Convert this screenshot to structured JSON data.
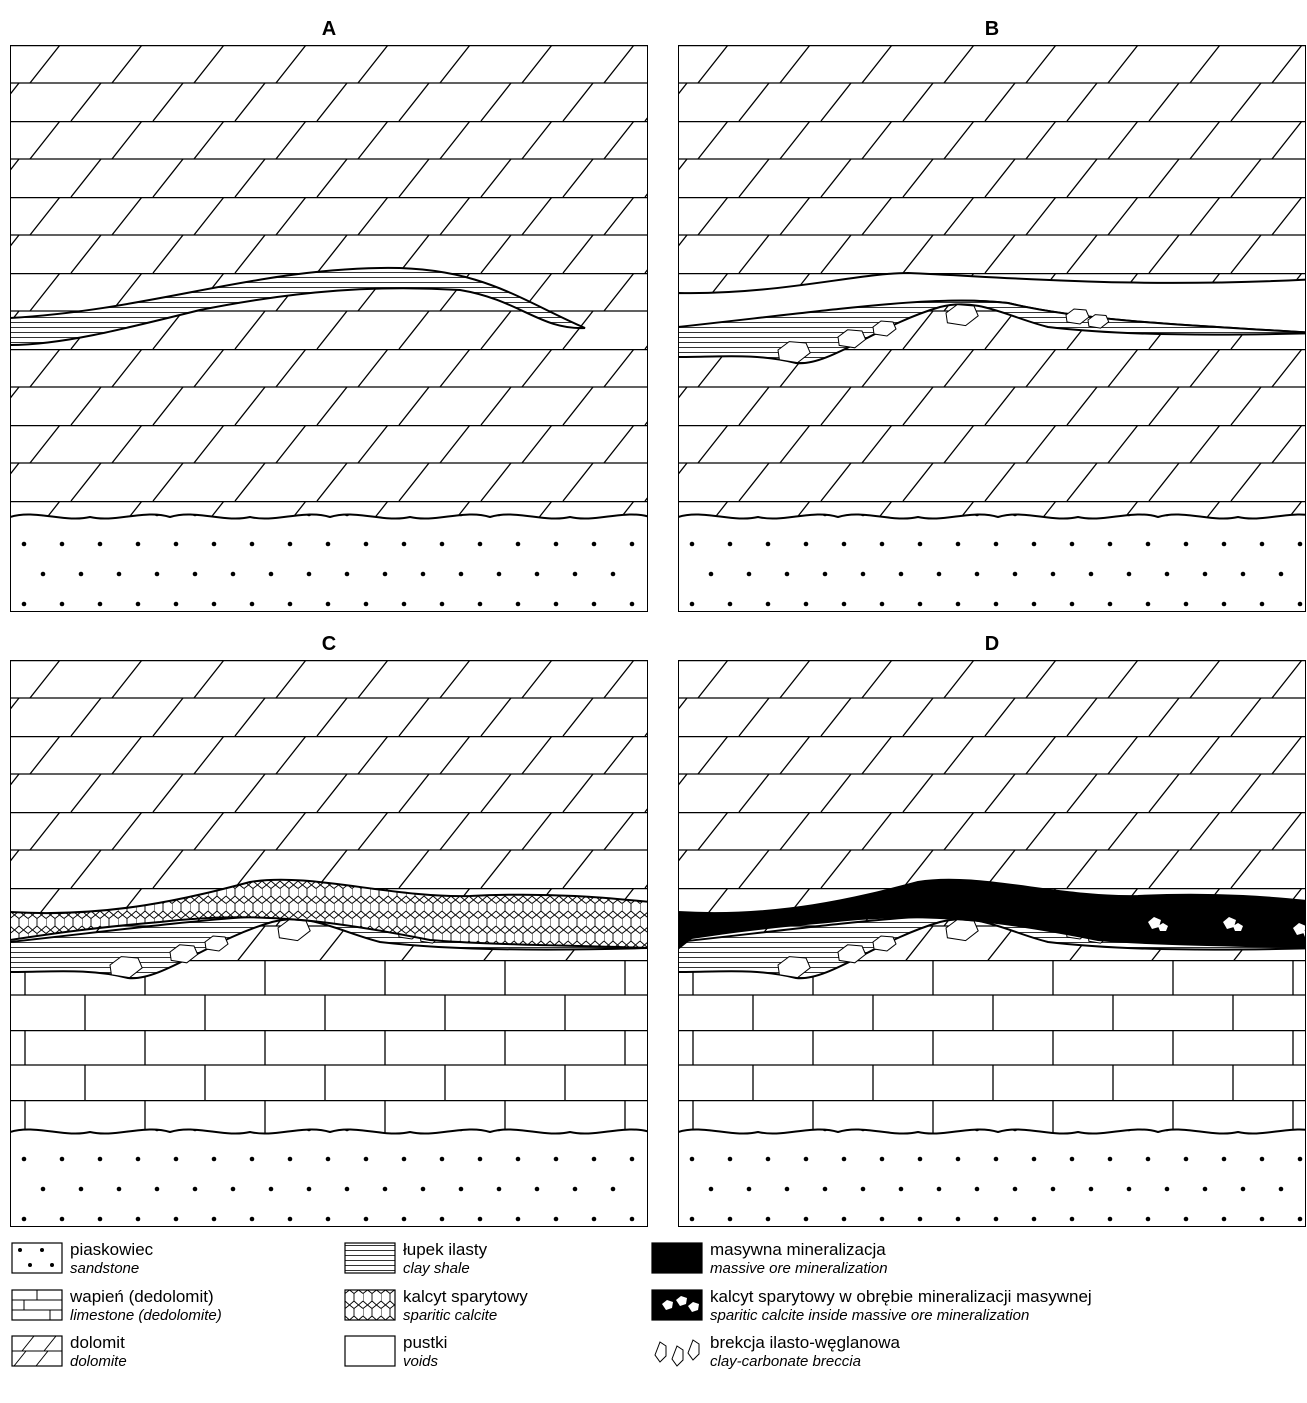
{
  "panels": [
    {
      "label": "A"
    },
    {
      "label": "B"
    },
    {
      "label": "C"
    },
    {
      "label": "D"
    }
  ],
  "legend": [
    {
      "name": "piaskowiec",
      "translation": "sandstone"
    },
    {
      "name": "wapień (dedolomit)",
      "translation": "limestone (dedolomite)"
    },
    {
      "name": "dolomit",
      "translation": "dolomite"
    },
    {
      "name": "łupek ilasty",
      "translation": "clay shale"
    },
    {
      "name": "kalcyt sparytowy",
      "translation": "sparitic calcite"
    },
    {
      "name": "pustki",
      "translation": "voids"
    },
    {
      "name": "masywna mineralizacja",
      "translation": "massive ore mineralization"
    },
    {
      "name": "kalcyt sparytowy w obrębie mineralizacji masywnej",
      "translation": "sparitic calcite inside massive ore mineralization"
    },
    {
      "name": "brekcja ilasto-węglanowa",
      "translation": "clay-carbonate breccia"
    }
  ]
}
